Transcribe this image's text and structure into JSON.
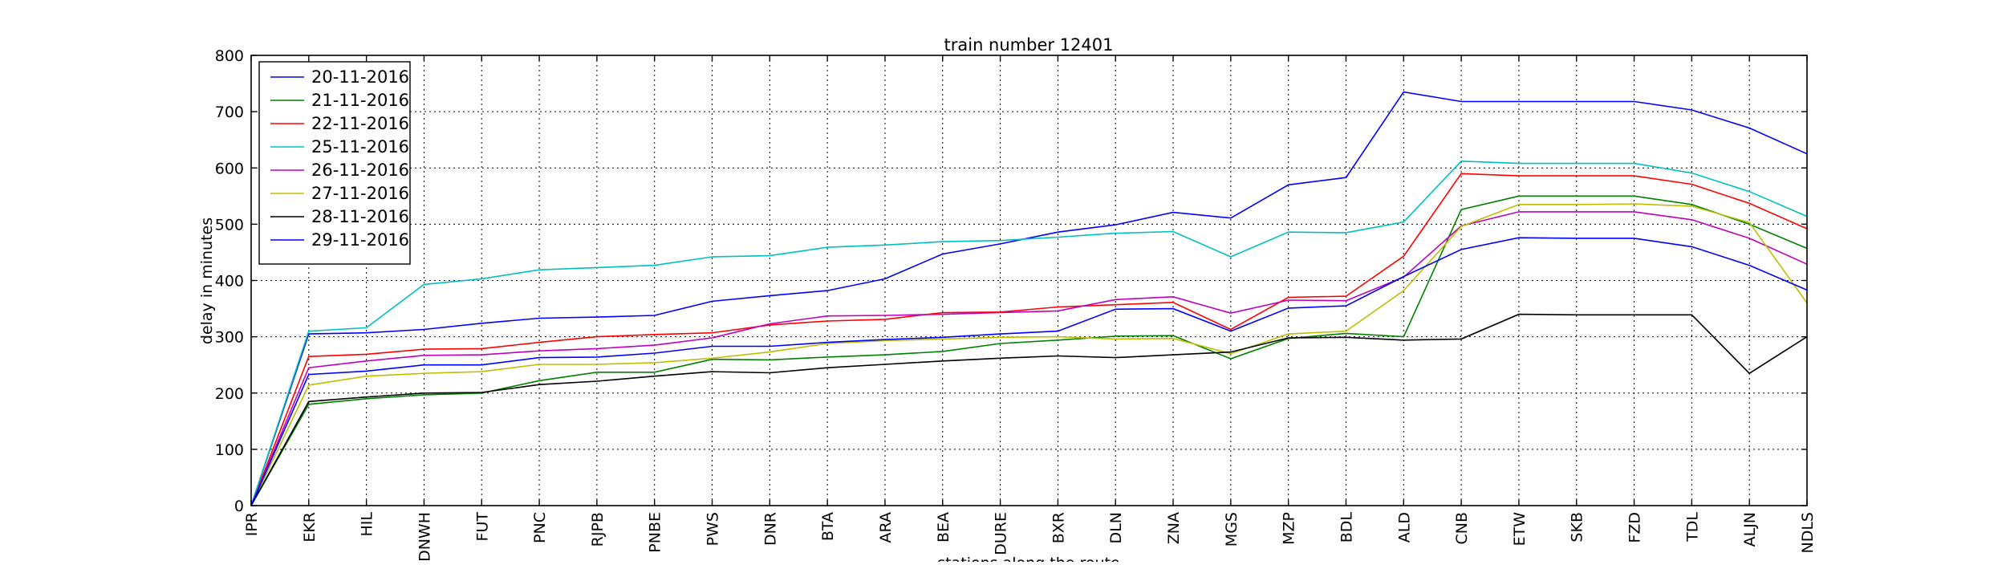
{
  "chart_data": {
    "type": "line",
    "title": "train number 12401",
    "xlabel": "stations along the route",
    "ylabel": "delay in minutes",
    "categories": [
      "IPR",
      "EKR",
      "HIL",
      "DNWH",
      "FUT",
      "PNC",
      "RJPB",
      "PNBE",
      "PWS",
      "DNR",
      "BTA",
      "ARA",
      "BEA",
      "DURE",
      "BXR",
      "DLN",
      "ZNA",
      "MGS",
      "MZP",
      "BDL",
      "ALD",
      "CNB",
      "ETW",
      "SKB",
      "FZD",
      "TDL",
      "ALJN",
      "NDLS"
    ],
    "yticks": [
      0,
      100,
      200,
      300,
      400,
      500,
      600,
      700,
      800
    ],
    "ylim": [
      0,
      800
    ],
    "grid": true,
    "legend_position": "top-left",
    "series": [
      {
        "name": "20-11-2016",
        "color": "#0000ff",
        "values": [
          0,
          305,
          307,
          313,
          324,
          333,
          335,
          338,
          363,
          373,
          382,
          403,
          447,
          465,
          486,
          499,
          521,
          511,
          570,
          583,
          735,
          718,
          718,
          718,
          718,
          703,
          671,
          625
        ]
      },
      {
        "name": "21-11-2016",
        "color": "#008000",
        "values": [
          0,
          180,
          190,
          197,
          200,
          222,
          237,
          237,
          260,
          259,
          264,
          268,
          274,
          288,
          294,
          301,
          302,
          261,
          297,
          306,
          300,
          526,
          550,
          550,
          550,
          535,
          500,
          457
        ]
      },
      {
        "name": "22-11-2016",
        "color": "#ff0000",
        "values": [
          0,
          265,
          269,
          278,
          279,
          290,
          300,
          304,
          307,
          321,
          328,
          331,
          343,
          344,
          353,
          357,
          361,
          313,
          370,
          372,
          443,
          590,
          586,
          586,
          586,
          571,
          537,
          492
        ]
      },
      {
        "name": "25-11-2016",
        "color": "#00bfbf",
        "values": [
          0,
          310,
          316,
          393,
          403,
          419,
          423,
          427,
          442,
          444,
          459,
          463,
          469,
          471,
          477,
          484,
          487,
          442,
          486,
          485,
          504,
          612,
          608,
          608,
          608,
          591,
          558,
          514
        ]
      },
      {
        "name": "26-11-2016",
        "color": "#bf00bf",
        "values": [
          0,
          245,
          257,
          267,
          268,
          275,
          279,
          285,
          298,
          323,
          337,
          338,
          340,
          343,
          346,
          366,
          371,
          342,
          365,
          364,
          406,
          497,
          522,
          522,
          522,
          508,
          475,
          429
        ]
      },
      {
        "name": "27-11-2016",
        "color": "#bfbf00",
        "values": [
          0,
          214,
          230,
          235,
          238,
          251,
          251,
          254,
          262,
          273,
          288,
          293,
          296,
          299,
          300,
          296,
          297,
          270,
          305,
          310,
          382,
          496,
          535,
          535,
          536,
          532,
          503,
          360
        ]
      },
      {
        "name": "28-11-2016",
        "color": "#000000",
        "values": [
          0,
          185,
          193,
          200,
          201,
          215,
          221,
          230,
          238,
          236,
          245,
          251,
          257,
          262,
          266,
          263,
          268,
          273,
          298,
          299,
          294,
          296,
          340,
          339,
          339,
          339,
          235,
          300
        ]
      },
      {
        "name": "29-11-2016",
        "color": "#0000ff",
        "values": [
          0,
          233,
          239,
          250,
          250,
          263,
          264,
          271,
          283,
          283,
          290,
          295,
          299,
          305,
          310,
          349,
          350,
          310,
          351,
          355,
          407,
          455,
          476,
          475,
          475,
          460,
          427,
          383
        ]
      }
    ]
  }
}
